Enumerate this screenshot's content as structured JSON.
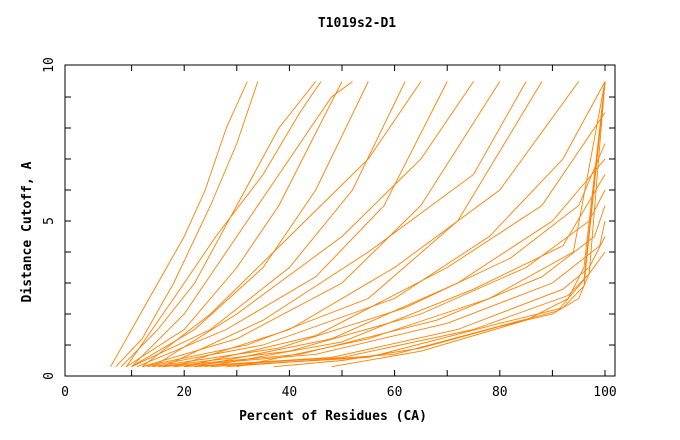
{
  "chart_data": {
    "type": "line",
    "title": "T1019s2-D1",
    "xlabel": "Percent of Residues (CA)",
    "ylabel": "Distance Cutoff, A",
    "xlim": [
      0,
      100
    ],
    "ylim": [
      0,
      10
    ],
    "x_ticks": [
      0,
      20,
      40,
      60,
      80,
      100
    ],
    "y_ticks": [
      0,
      5,
      10
    ],
    "grid": false,
    "line_color": "#ff8000",
    "series": [
      {
        "points": [
          [
            6,
            0.3
          ],
          [
            10,
            1.5
          ],
          [
            15,
            3
          ],
          [
            20,
            4.5
          ],
          [
            24,
            6
          ],
          [
            28,
            8
          ],
          [
            32,
            9.5
          ]
        ]
      },
      {
        "points": [
          [
            7,
            0.3
          ],
          [
            12,
            1.2
          ],
          [
            18,
            3
          ],
          [
            25,
            5.5
          ],
          [
            30,
            7.5
          ],
          [
            34,
            9.5
          ]
        ]
      },
      {
        "points": [
          [
            8,
            0.3
          ],
          [
            15,
            1.5
          ],
          [
            22,
            3
          ],
          [
            30,
            5.5
          ],
          [
            38,
            8
          ],
          [
            45,
            9.5
          ]
        ]
      },
      {
        "points": [
          [
            9,
            0.3
          ],
          [
            20,
            1.5
          ],
          [
            30,
            3.5
          ],
          [
            38,
            5.5
          ],
          [
            44,
            7.5
          ],
          [
            50,
            9.5
          ]
        ]
      },
      {
        "points": [
          [
            10,
            0.3
          ],
          [
            22,
            1.5
          ],
          [
            35,
            3.5
          ],
          [
            45,
            6
          ],
          [
            55,
            9.5
          ]
        ]
      },
      {
        "points": [
          [
            10,
            0.3
          ],
          [
            25,
            1.5
          ],
          [
            40,
            3.5
          ],
          [
            52,
            6
          ],
          [
            62,
            9.5
          ]
        ]
      },
      {
        "points": [
          [
            11,
            0.3
          ],
          [
            28,
            1.5
          ],
          [
            45,
            3.2
          ],
          [
            58,
            5.5
          ],
          [
            70,
            9.5
          ]
        ]
      },
      {
        "points": [
          [
            12,
            0.3
          ],
          [
            30,
            1.2
          ],
          [
            50,
            3
          ],
          [
            65,
            5.5
          ],
          [
            80,
            9.5
          ]
        ]
      },
      {
        "points": [
          [
            12,
            0.3
          ],
          [
            32,
            1.0
          ],
          [
            55,
            2.5
          ],
          [
            72,
            5
          ],
          [
            88,
            9.5
          ]
        ]
      },
      {
        "points": [
          [
            13,
            0.3
          ],
          [
            35,
            1.0
          ],
          [
            60,
            2.5
          ],
          [
            78,
            4.5
          ],
          [
            92,
            7
          ],
          [
            100,
            9.5
          ]
        ]
      },
      {
        "points": [
          [
            14,
            0.3
          ],
          [
            38,
            0.9
          ],
          [
            62,
            2.2
          ],
          [
            82,
            3.8
          ],
          [
            95,
            5.5
          ],
          [
            100,
            7.5
          ]
        ]
      },
      {
        "points": [
          [
            15,
            0.3
          ],
          [
            40,
            0.8
          ],
          [
            65,
            2.0
          ],
          [
            85,
            3.5
          ],
          [
            97,
            5
          ],
          [
            100,
            6
          ]
        ]
      },
      {
        "points": [
          [
            16,
            0.3
          ],
          [
            42,
            0.7
          ],
          [
            68,
            1.8
          ],
          [
            88,
            3.2
          ],
          [
            98,
            4.5
          ],
          [
            100,
            5.5
          ]
        ]
      },
      {
        "points": [
          [
            18,
            0.3
          ],
          [
            45,
            0.7
          ],
          [
            70,
            1.7
          ],
          [
            90,
            3
          ],
          [
            99,
            4.2
          ],
          [
            100,
            5
          ]
        ]
      },
      {
        "points": [
          [
            20,
            0.3
          ],
          [
            48,
            0.6
          ],
          [
            72,
            1.5
          ],
          [
            92,
            2.8
          ],
          [
            97,
            3.5
          ],
          [
            100,
            4.5
          ]
        ]
      },
      {
        "points": [
          [
            22,
            0.3
          ],
          [
            50,
            0.6
          ],
          [
            75,
            1.5
          ],
          [
            93,
            2.6
          ],
          [
            97,
            3.3
          ],
          [
            100,
            4
          ]
        ]
      },
      {
        "points": [
          [
            25,
            0.3
          ],
          [
            55,
            0.6
          ],
          [
            80,
            1.7
          ],
          [
            92,
            2.2
          ],
          [
            96,
            2.9
          ],
          [
            100,
            9.5
          ]
        ]
      },
      {
        "points": [
          [
            28,
            0.3
          ],
          [
            60,
            0.7
          ],
          [
            82,
            1.7
          ],
          [
            91,
            2.1
          ],
          [
            96,
            3.1
          ],
          [
            100,
            9.5
          ]
        ]
      },
      {
        "points": [
          [
            37,
            0.3
          ],
          [
            50,
            0.5
          ],
          [
            65,
            0.9
          ],
          [
            80,
            1.6
          ],
          [
            90,
            2.0
          ],
          [
            95,
            2.5
          ],
          [
            97,
            3.3
          ],
          [
            100,
            9.5
          ]
        ]
      },
      {
        "points": [
          [
            48,
            0.3
          ],
          [
            65,
            0.8
          ],
          [
            85,
            1.8
          ],
          [
            93,
            2.5
          ],
          [
            96,
            3.5
          ],
          [
            99,
            8
          ],
          [
            100,
            9.5
          ]
        ]
      },
      {
        "points": [
          [
            9,
            0.3
          ],
          [
            18,
            2.5
          ],
          [
            26,
            4.5
          ],
          [
            35,
            6.5
          ],
          [
            42,
            8.5
          ],
          [
            46,
            9.5
          ]
        ]
      },
      {
        "points": [
          [
            10,
            0.3
          ],
          [
            20,
            2
          ],
          [
            30,
            4.5
          ],
          [
            40,
            7
          ],
          [
            48,
            9
          ],
          [
            52,
            9.5
          ]
        ]
      },
      {
        "points": [
          [
            12,
            0.3
          ],
          [
            25,
            2
          ],
          [
            40,
            4.5
          ],
          [
            55,
            7
          ],
          [
            65,
            9.5
          ]
        ]
      },
      {
        "points": [
          [
            14,
            0.3
          ],
          [
            30,
            2
          ],
          [
            50,
            4.5
          ],
          [
            65,
            7
          ],
          [
            75,
            9.5
          ]
        ]
      },
      {
        "points": [
          [
            16,
            0.3
          ],
          [
            35,
            1.8
          ],
          [
            55,
            4
          ],
          [
            75,
            6.5
          ],
          [
            85,
            9.5
          ]
        ]
      },
      {
        "points": [
          [
            18,
            0.3
          ],
          [
            40,
            1.5
          ],
          [
            60,
            3.5
          ],
          [
            80,
            6
          ],
          [
            95,
            9.5
          ]
        ]
      },
      {
        "points": [
          [
            20,
            0.3
          ],
          [
            45,
            1.3
          ],
          [
            70,
            3.5
          ],
          [
            88,
            5.5
          ],
          [
            100,
            8.5
          ]
        ]
      },
      {
        "points": [
          [
            22,
            0.3
          ],
          [
            48,
            1.2
          ],
          [
            72,
            3
          ],
          [
            90,
            5
          ],
          [
            100,
            7
          ]
        ]
      },
      {
        "points": [
          [
            24,
            0.3
          ],
          [
            50,
            1.1
          ],
          [
            75,
            2.8
          ],
          [
            92,
            4.2
          ],
          [
            100,
            6.5
          ]
        ]
      },
      {
        "points": [
          [
            30,
            0.3
          ],
          [
            55,
            1.2
          ],
          [
            78,
            2.5
          ],
          [
            94,
            4
          ],
          [
            100,
            9.5
          ]
        ]
      }
    ]
  }
}
